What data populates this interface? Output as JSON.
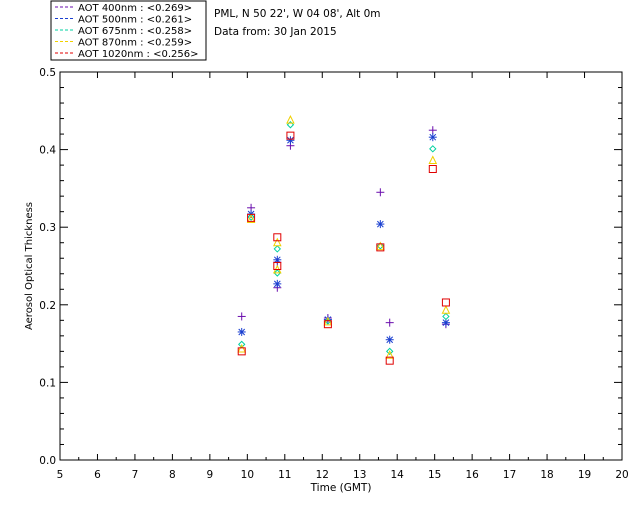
{
  "header": {
    "station": "PML, N 50 22', W 04 08', Alt 0m",
    "date": "Data from: 30 Jan 2015"
  },
  "chart_data": {
    "type": "scatter",
    "xlabel": "Time (GMT)",
    "ylabel": "Aerosol Optical Thickness",
    "xlim": [
      5,
      20
    ],
    "ylim": [
      0,
      0.5
    ],
    "xticks": [
      "5",
      "6",
      "7",
      "8",
      "9",
      "10",
      "11",
      "12",
      "13",
      "14",
      "15",
      "16",
      "17",
      "18",
      "19",
      "20"
    ],
    "yticks": [
      "0.0",
      "0.1",
      "0.2",
      "0.3",
      "0.4",
      "0.5"
    ],
    "legend_position": "top-left",
    "series": [
      {
        "name": "AOT  400nm : <0.269>",
        "color": "#6a0dad",
        "marker": "plus",
        "x": [
          9.85,
          10.1,
          10.8,
          10.8,
          11.15,
          12.15,
          13.55,
          13.8,
          14.95,
          15.3
        ],
        "y": [
          0.185,
          0.325,
          0.222,
          0.255,
          0.405,
          0.183,
          0.345,
          0.177,
          0.425,
          0.175
        ]
      },
      {
        "name": "AOT  500nm : <0.261>",
        "color": "#1a3fd0",
        "marker": "asterisk",
        "x": [
          9.85,
          10.1,
          10.8,
          10.8,
          11.15,
          12.15,
          13.55,
          13.8,
          14.95,
          15.3
        ],
        "y": [
          0.165,
          0.317,
          0.227,
          0.258,
          0.412,
          0.181,
          0.304,
          0.155,
          0.416,
          0.177
        ]
      },
      {
        "name": "AOT  675nm : <0.258>",
        "color": "#00d0a0",
        "marker": "diamond",
        "x": [
          9.85,
          10.1,
          10.8,
          10.8,
          11.15,
          12.15,
          13.55,
          13.8,
          14.95,
          15.3
        ],
        "y": [
          0.149,
          0.313,
          0.241,
          0.272,
          0.432,
          0.179,
          0.276,
          0.14,
          0.401,
          0.185
        ]
      },
      {
        "name": "AOT  870nm : <0.259>",
        "color": "#f0d000",
        "marker": "triangle",
        "x": [
          9.85,
          10.1,
          10.8,
          10.8,
          11.15,
          12.15,
          13.55,
          13.8,
          14.95,
          15.3
        ],
        "y": [
          0.143,
          0.31,
          0.245,
          0.28,
          0.438,
          0.178,
          0.275,
          0.135,
          0.386,
          0.193
        ]
      },
      {
        "name": "AOT 1020nm : <0.256>",
        "color": "#e00000",
        "marker": "square",
        "x": [
          9.85,
          10.1,
          10.8,
          10.8,
          11.15,
          12.15,
          13.55,
          13.8,
          14.95,
          15.3
        ],
        "y": [
          0.14,
          0.312,
          0.25,
          0.287,
          0.418,
          0.175,
          0.274,
          0.128,
          0.375,
          0.203
        ]
      }
    ]
  }
}
